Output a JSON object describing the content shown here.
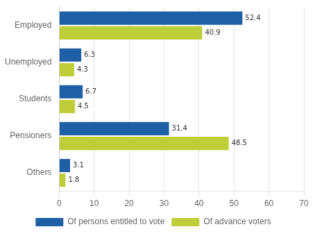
{
  "chart_data": {
    "type": "bar",
    "orientation": "horizontal",
    "categories": [
      "Employed",
      "Unemployed",
      "Students",
      "Pensioners",
      "Others"
    ],
    "series": [
      {
        "name": "Of persons entitled to vote",
        "color": "#1f5fa6",
        "values": [
          52.4,
          6.3,
          6.7,
          31.4,
          3.1
        ]
      },
      {
        "name": "Of advance voters",
        "color": "#bece38",
        "values": [
          40.9,
          4.3,
          4.5,
          48.5,
          1.8
        ]
      }
    ],
    "xlim": [
      0,
      70
    ],
    "xticks": [
      0,
      10,
      20,
      30,
      40,
      50,
      60,
      70
    ],
    "grid": true,
    "legend": "bottom",
    "data_labels": true
  }
}
